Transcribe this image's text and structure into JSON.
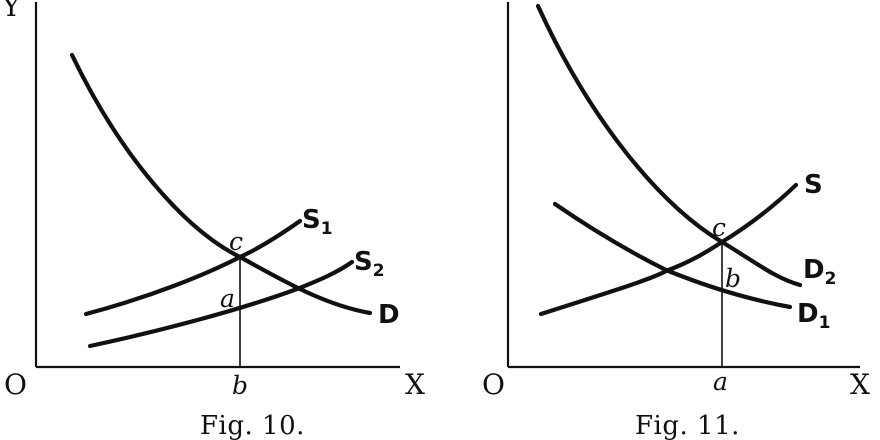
{
  "figures": [
    {
      "caption": "Fig. 10.",
      "axis_y": "Y",
      "axis_x": "X",
      "origin": "O",
      "point_labels": {
        "c": "c",
        "a": "a",
        "b": "b"
      },
      "curves": [
        {
          "name": "S",
          "sub": "1"
        },
        {
          "name": "S",
          "sub": "2"
        },
        {
          "name": "D",
          "sub": ""
        }
      ]
    },
    {
      "caption": "Fig. 11.",
      "axis_y": "",
      "axis_x": "X",
      "origin": "O",
      "point_labels": {
        "c": "c",
        "b": "b",
        "a": "a"
      },
      "curves": [
        {
          "name": "S",
          "sub": ""
        },
        {
          "name": "D",
          "sub": "2"
        },
        {
          "name": "D",
          "sub": "1"
        }
      ]
    }
  ]
}
